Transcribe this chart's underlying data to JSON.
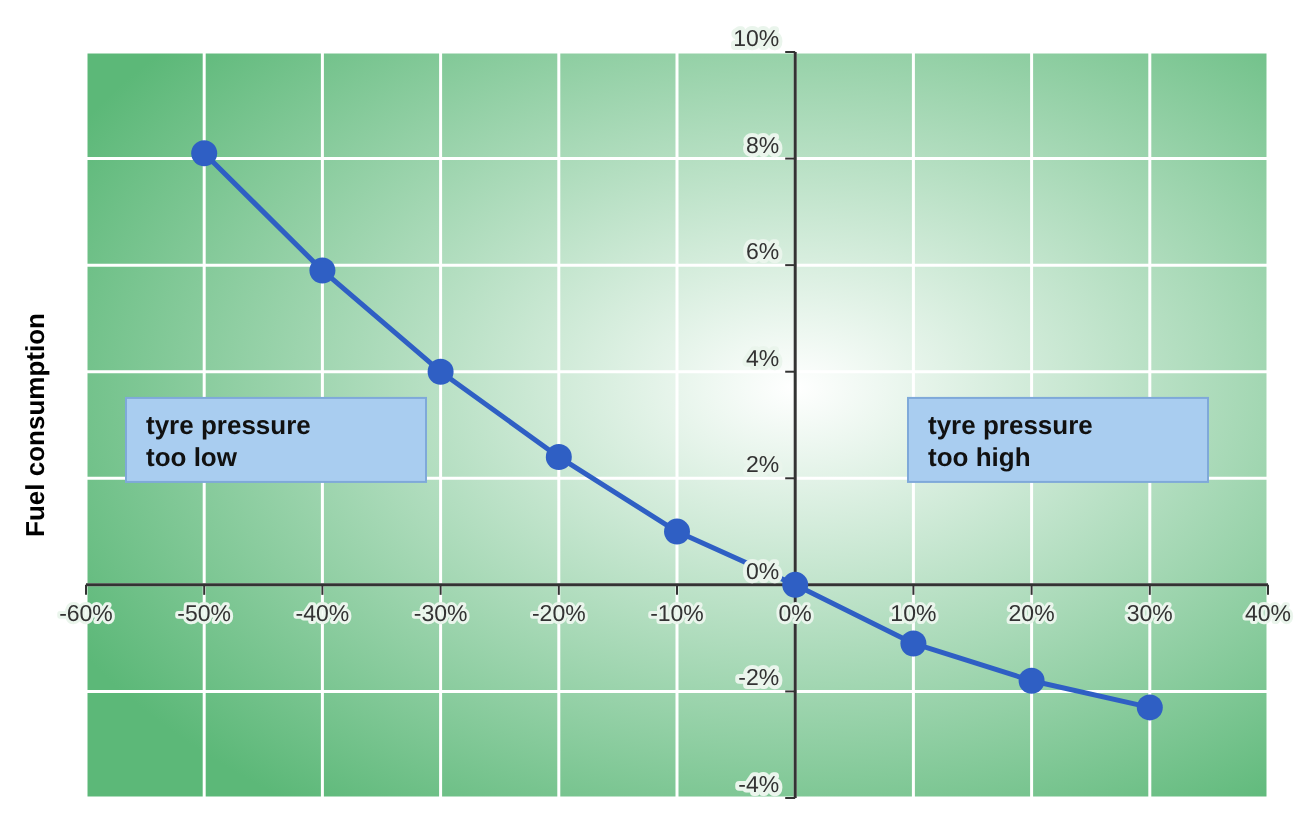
{
  "chart_data": {
    "type": "line",
    "ylabel": "Fuel consumption",
    "x": [
      -50,
      -40,
      -30,
      -20,
      -10,
      0,
      10,
      20,
      30
    ],
    "series": [
      {
        "color": "#2f5fc4",
        "values": [
          8.1,
          5.9,
          4.0,
          2.4,
          1.0,
          0.0,
          -1.1,
          -1.8,
          -2.3
        ]
      }
    ],
    "xlim": [
      -60,
      40
    ],
    "xticks": [
      {
        "value": -60,
        "label": "-60%"
      },
      {
        "value": -50,
        "label": "-50%"
      },
      {
        "value": -40,
        "label": "-40%"
      },
      {
        "value": -30,
        "label": "-30%"
      },
      {
        "value": -20,
        "label": "-20%"
      },
      {
        "value": -10,
        "label": "-10%"
      },
      {
        "value": 0,
        "label": "0%"
      },
      {
        "value": 10,
        "label": "10%"
      },
      {
        "value": 20,
        "label": "20%"
      },
      {
        "value": 30,
        "label": "30%"
      },
      {
        "value": 40,
        "label": "40%"
      }
    ],
    "ylim": [
      -4,
      10
    ],
    "yticks": [
      {
        "value": -4,
        "label": "-4%"
      },
      {
        "value": -2,
        "label": "-2%"
      },
      {
        "value": 0,
        "label": "0%"
      },
      {
        "value": 2,
        "label": "2%"
      },
      {
        "value": 4,
        "label": "4%"
      },
      {
        "value": 6,
        "label": "6%"
      },
      {
        "value": 8,
        "label": "8%"
      },
      {
        "value": 10,
        "label": "10%"
      }
    ],
    "annotations": [
      "tyre pressure\ntoo low",
      "tyre pressure\ntoo high"
    ],
    "grid": true,
    "marker": "circle",
    "line_style": "solid"
  }
}
